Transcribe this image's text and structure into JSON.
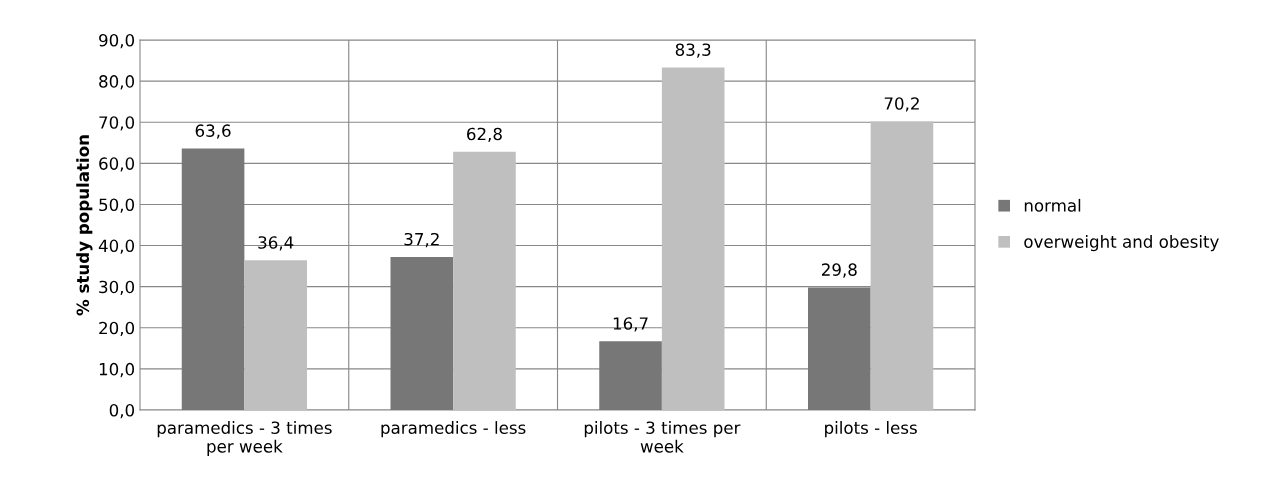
{
  "chart_data": {
    "type": "bar",
    "ylabel": "% study population",
    "categories": [
      "paramedics - 3 times\nper week",
      "paramedics - less",
      "pilots - 3 times per\nweek",
      "pilots - less"
    ],
    "series": [
      {
        "name": "normal",
        "color": "#777777",
        "values": [
          63.6,
          37.2,
          16.7,
          29.8
        ],
        "value_labels": [
          "63,6",
          "37,2",
          "16,7",
          "29,8"
        ]
      },
      {
        "name": "overweight and obesity",
        "color": "#bfbfbf",
        "values": [
          36.4,
          62.8,
          83.3,
          70.2
        ],
        "value_labels": [
          "36,4",
          "62,8",
          "83,3",
          "70,2"
        ]
      }
    ],
    "ylim": [
      0,
      90
    ],
    "yticks": [
      {
        "value": 0,
        "label": "0,0"
      },
      {
        "value": 10,
        "label": "10,0"
      },
      {
        "value": 20,
        "label": "20,0"
      },
      {
        "value": 30,
        "label": "30,0"
      },
      {
        "value": 40,
        "label": "40,0"
      },
      {
        "value": 50,
        "label": "50,0"
      },
      {
        "value": 60,
        "label": "60,0"
      },
      {
        "value": 70,
        "label": "70,0"
      },
      {
        "value": 80,
        "label": "80,0"
      },
      {
        "value": 90,
        "label": "90,0"
      }
    ],
    "grid": true,
    "legend": "right"
  }
}
